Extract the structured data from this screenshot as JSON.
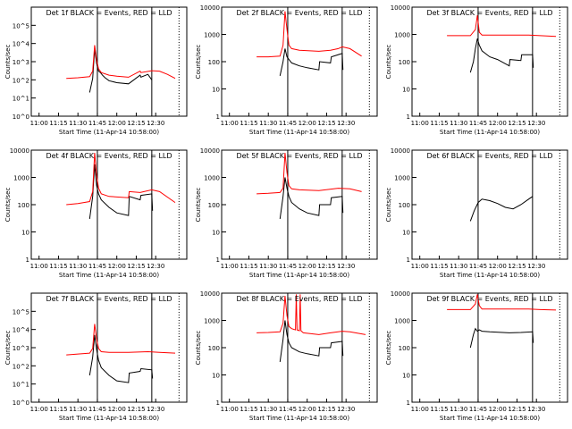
{
  "page": {
    "xlabel": "Start Time (11-Apr-14 10:58:00)",
    "ylabel": "Counts/sec",
    "x_ticks": [
      "11:00",
      "11:15",
      "11:30",
      "11:45",
      "12:00",
      "12:15",
      "12:30"
    ],
    "colors": {
      "events": "#000000",
      "lld": "#ff0000",
      "axes": "#000000"
    }
  },
  "chart_data": [
    {
      "type": "line",
      "detector": "1f",
      "title": "Det  1f  BLACK = Events, RED = LLD",
      "scale": "log",
      "ylim": [
        1,
        1000000
      ],
      "y_ticks": [
        "10^0",
        "10^1",
        "10^2",
        "10^3",
        "10^4",
        "10^5"
      ],
      "xlim_minutes": [
        0,
        40
      ],
      "vlines_minutes": [
        17,
        31,
        38
      ],
      "series": [
        {
          "kind": "events",
          "x": [
            15,
            15.8,
            16.3,
            16.8,
            17.3,
            17.8,
            18.3,
            19.0,
            20.0,
            22.0,
            25.0,
            28.0,
            28.2,
            30.0,
            31.0
          ],
          "y": [
            20,
            120,
            5000,
            800,
            300,
            250,
            180,
            130,
            90,
            70,
            60,
            180,
            140,
            200,
            100
          ]
        },
        {
          "kind": "lld",
          "x": [
            9,
            12,
            15,
            15.8,
            16.3,
            16.8,
            17.3,
            18.0,
            20.0,
            22.0,
            25.0,
            28.0,
            28.2,
            31.0,
            33.0,
            35.0,
            37.0
          ],
          "y": [
            120,
            130,
            150,
            300,
            8000,
            1200,
            400,
            250,
            180,
            160,
            140,
            300,
            250,
            320,
            300,
            200,
            120
          ]
        }
      ]
    },
    {
      "type": "line",
      "detector": "2f",
      "title": "Det  2f  BLACK = Events, RED = LLD",
      "scale": "log",
      "ylim": [
        1,
        10000
      ],
      "y_ticks": [
        "1",
        "10",
        "100",
        "1000",
        "10000"
      ],
      "xlim_minutes": [
        0,
        40
      ],
      "vlines_minutes": [
        17,
        31,
        38
      ],
      "series": [
        {
          "kind": "events",
          "x": [
            15,
            15.8,
            16.3,
            16.8,
            17.3,
            18.0,
            20.0,
            22.0,
            25.0,
            25.2,
            28.0,
            28.2,
            31.0,
            31.2
          ],
          "y": [
            30,
            100,
            300,
            150,
            120,
            90,
            70,
            60,
            50,
            100,
            90,
            150,
            200,
            50
          ]
        },
        {
          "kind": "lld",
          "x": [
            9,
            12,
            15,
            15.8,
            16.3,
            16.8,
            17.3,
            18.0,
            20.0,
            25.0,
            28.0,
            30.0,
            31.0,
            33.0,
            36.0
          ],
          "y": [
            150,
            150,
            160,
            400,
            7000,
            1500,
            400,
            300,
            260,
            240,
            260,
            300,
            350,
            300,
            160
          ]
        }
      ]
    },
    {
      "type": "line",
      "detector": "3f",
      "title": "Det  3f  BLACK = Events, RED = LLD",
      "scale": "log",
      "ylim": [
        1,
        10000
      ],
      "y_ticks": [
        "1",
        "10",
        "100",
        "1000",
        "10000"
      ],
      "xlim_minutes": [
        0,
        40
      ],
      "vlines_minutes": [
        17,
        31,
        38
      ],
      "series": [
        {
          "kind": "events",
          "x": [
            15,
            15.8,
            16.3,
            16.8,
            17.3,
            18.0,
            20.0,
            22.0,
            25.0,
            25.2,
            28.0,
            28.2,
            31.0,
            31.2
          ],
          "y": [
            40,
            100,
            300,
            700,
            400,
            250,
            150,
            120,
            70,
            120,
            110,
            180,
            180,
            60
          ]
        },
        {
          "kind": "lld",
          "x": [
            9,
            12,
            15,
            16.3,
            16.8,
            17.3,
            18.0,
            20.0,
            25.0,
            30.0,
            33.0,
            37.0
          ],
          "y": [
            900,
            900,
            900,
            1500,
            5000,
            1200,
            950,
            950,
            950,
            950,
            900,
            850
          ]
        }
      ]
    },
    {
      "type": "line",
      "detector": "4f",
      "title": "Det  4f  BLACK = Events, RED = LLD",
      "scale": "log",
      "ylim": [
        1,
        10000
      ],
      "y_ticks": [
        "1",
        "10",
        "100",
        "1000",
        "10000"
      ],
      "xlim_minutes": [
        0,
        40
      ],
      "vlines_minutes": [
        17,
        31,
        38
      ],
      "series": [
        {
          "kind": "events",
          "x": [
            15,
            15.8,
            16.3,
            16.8,
            17.3,
            18.0,
            20.0,
            22.0,
            25.0,
            25.2,
            28.0,
            28.2,
            31.0,
            31.2
          ],
          "y": [
            30,
            200,
            3000,
            500,
            250,
            150,
            80,
            50,
            40,
            200,
            150,
            220,
            250,
            60
          ]
        },
        {
          "kind": "lld",
          "x": [
            9,
            12,
            15,
            15.8,
            16.3,
            16.8,
            17.3,
            18.0,
            20.0,
            25.0,
            25.2,
            28.0,
            31.0,
            33.0,
            37.0
          ],
          "y": [
            100,
            110,
            130,
            300,
            8000,
            1200,
            400,
            250,
            200,
            180,
            300,
            280,
            350,
            300,
            120
          ]
        }
      ]
    },
    {
      "type": "line",
      "detector": "5f",
      "title": "Det  5f  BLACK = Events, RED = LLD",
      "scale": "log",
      "ylim": [
        1,
        10000
      ],
      "y_ticks": [
        "1",
        "10",
        "100",
        "1000",
        "10000"
      ],
      "xlim_minutes": [
        0,
        40
      ],
      "vlines_minutes": [
        17,
        31,
        38
      ],
      "series": [
        {
          "kind": "events",
          "x": [
            15,
            15.8,
            16.3,
            16.8,
            17.3,
            18.0,
            20.0,
            22.0,
            25.0,
            25.2,
            28.0,
            28.2,
            31.0,
            31.2
          ],
          "y": [
            30,
            200,
            1000,
            400,
            200,
            120,
            70,
            50,
            40,
            100,
            100,
            180,
            200,
            50
          ]
        },
        {
          "kind": "lld",
          "x": [
            9,
            12,
            15,
            15.8,
            16.3,
            16.8,
            17.3,
            18.0,
            20.0,
            25.0,
            30.0,
            33.0,
            36.0
          ],
          "y": [
            250,
            260,
            280,
            400,
            8000,
            1500,
            500,
            380,
            350,
            330,
            400,
            380,
            300
          ]
        }
      ]
    },
    {
      "type": "line",
      "detector": "6f",
      "title": "Det  6f  BLACK = Events, RED = LLD",
      "scale": "log",
      "ylim": [
        1,
        10000
      ],
      "y_ticks": [
        "1",
        "10",
        "100",
        "1000",
        "10000"
      ],
      "xlim_minutes": [
        0,
        40
      ],
      "vlines_minutes": [
        17,
        31,
        38
      ],
      "series": [
        {
          "kind": "events",
          "x": [
            15,
            16.0,
            17.0,
            18.0,
            20.0,
            22.0,
            24.0,
            26.0,
            28.0,
            30.0,
            31.0
          ],
          "y": [
            25,
            60,
            120,
            160,
            140,
            110,
            80,
            70,
            100,
            160,
            200
          ]
        }
      ]
    },
    {
      "type": "line",
      "detector": "7f",
      "title": "Det  7f  BLACK = Events, RED = LLD",
      "scale": "log",
      "ylim": [
        1,
        1000000
      ],
      "y_ticks": [
        "10^0",
        "10^1",
        "10^2",
        "10^3",
        "10^4",
        "10^5"
      ],
      "xlim_minutes": [
        0,
        40
      ],
      "vlines_minutes": [
        17,
        31,
        38
      ],
      "series": [
        {
          "kind": "events",
          "x": [
            15,
            15.8,
            16.3,
            16.8,
            17.3,
            18.0,
            20.0,
            22.0,
            25.0,
            25.2,
            28.0,
            28.2,
            31.0,
            31.2
          ],
          "y": [
            30,
            300,
            5000,
            800,
            200,
            80,
            30,
            15,
            12,
            40,
            50,
            70,
            60,
            20
          ]
        },
        {
          "kind": "lld",
          "x": [
            9,
            12,
            15,
            15.8,
            16.3,
            16.8,
            17.3,
            18.0,
            20.0,
            25.0,
            30.0,
            33.0,
            37.0
          ],
          "y": [
            400,
            450,
            500,
            900,
            20000,
            3000,
            900,
            600,
            550,
            550,
            600,
            550,
            500
          ]
        }
      ]
    },
    {
      "type": "line",
      "detector": "8f",
      "title": "Det  8f  BLACK = Events, RED = LLD",
      "scale": "log",
      "ylim": [
        1,
        10000
      ],
      "y_ticks": [
        "1",
        "10",
        "100",
        "1000",
        "10000"
      ],
      "xlim_minutes": [
        0,
        40
      ],
      "vlines_minutes": [
        17,
        31,
        38
      ],
      "series": [
        {
          "kind": "events",
          "x": [
            15,
            15.8,
            16.3,
            16.8,
            17.3,
            18.0,
            20.0,
            22.0,
            25.0,
            25.2,
            28.0,
            28.2,
            31.0,
            31.2
          ],
          "y": [
            30,
            200,
            1000,
            300,
            150,
            100,
            70,
            60,
            50,
            100,
            100,
            150,
            170,
            50
          ]
        },
        {
          "kind": "lld",
          "x": [
            9,
            12,
            15,
            15.8,
            16.3,
            16.8,
            17.3,
            18.0,
            19.0,
            19.2,
            19.4,
            20.0,
            20.2,
            20.4,
            21.0,
            25.0,
            28.0,
            31.0,
            33.0,
            37.0
          ],
          "y": [
            350,
            360,
            380,
            800,
            8000,
            1500,
            600,
            500,
            450,
            9000,
            450,
            420,
            9000,
            420,
            350,
            300,
            350,
            400,
            380,
            300
          ]
        }
      ]
    },
    {
      "type": "line",
      "detector": "9f",
      "title": "Det  9f  BLACK = Events, RED = LLD",
      "scale": "log",
      "ylim": [
        1,
        10000
      ],
      "y_ticks": [
        "1",
        "10",
        "100",
        "1000",
        "10000"
      ],
      "xlim_minutes": [
        0,
        40
      ],
      "vlines_minutes": [
        17,
        31,
        38
      ],
      "series": [
        {
          "kind": "events",
          "x": [
            15,
            15.8,
            16.3,
            16.8,
            17.3,
            18.0,
            20.0,
            25.0,
            28.0,
            31.0,
            31.2
          ],
          "y": [
            100,
            300,
            500,
            400,
            450,
            400,
            380,
            350,
            360,
            380,
            150
          ]
        },
        {
          "kind": "lld",
          "x": [
            9,
            12,
            15,
            16.3,
            16.8,
            17.3,
            18.0,
            20.0,
            25.0,
            30.0,
            33.0,
            37.0
          ],
          "y": [
            2500,
            2500,
            2500,
            4000,
            9000,
            3500,
            2600,
            2600,
            2600,
            2600,
            2500,
            2400
          ]
        }
      ]
    }
  ]
}
